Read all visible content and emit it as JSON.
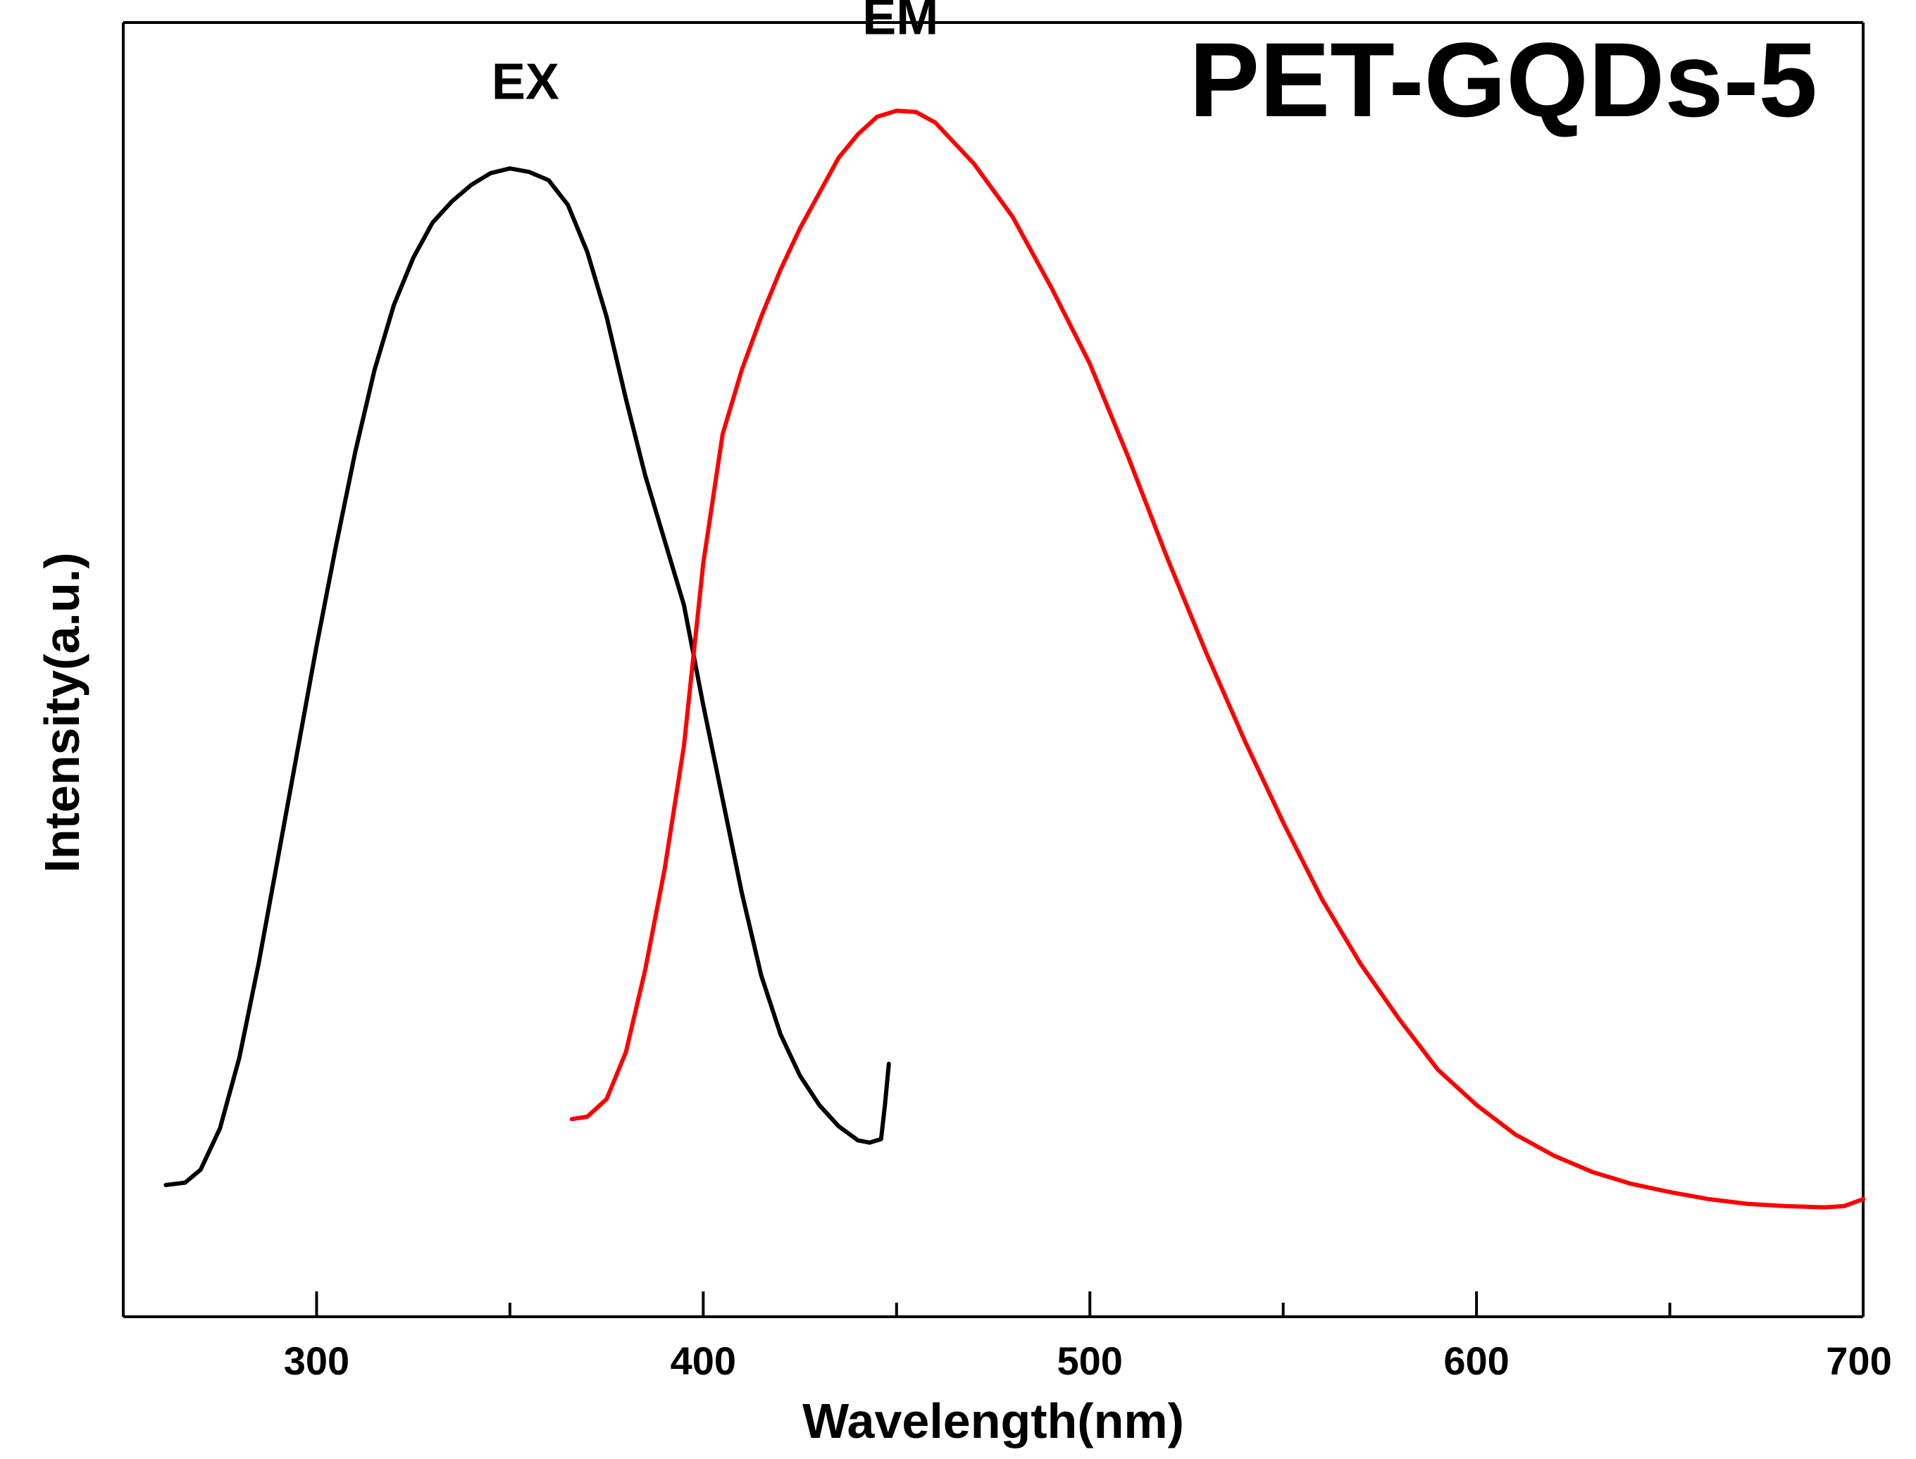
{
  "chart_data": {
    "type": "line",
    "title": "PET-GQDs-5",
    "xlabel": "Wavelength(nm)",
    "ylabel": "Intensity(a.u.)",
    "xlim": [
      250,
      700
    ],
    "ylim": [
      0,
      1.1
    ],
    "xticks": [
      300,
      400,
      500,
      600,
      700
    ],
    "minor_xticks": [
      350,
      450,
      550,
      650
    ],
    "grid": false,
    "series": [
      {
        "name": "EX",
        "color": "#000000",
        "label_at": [
          354,
          1.035
        ],
        "x": [
          261,
          266,
          270,
          275,
          280,
          285,
          290,
          295,
          300,
          305,
          310,
          315,
          320,
          325,
          330,
          335,
          340,
          345,
          350,
          355,
          360,
          365,
          370,
          375,
          380,
          385,
          390,
          395,
          400,
          405,
          410,
          415,
          420,
          425,
          430,
          435,
          440,
          443,
          446,
          447,
          448
        ],
        "y": [
          0.112,
          0.114,
          0.125,
          0.16,
          0.22,
          0.3,
          0.39,
          0.48,
          0.57,
          0.655,
          0.735,
          0.805,
          0.86,
          0.9,
          0.93,
          0.948,
          0.962,
          0.972,
          0.976,
          0.973,
          0.966,
          0.945,
          0.905,
          0.85,
          0.78,
          0.715,
          0.66,
          0.605,
          0.52,
          0.44,
          0.36,
          0.29,
          0.24,
          0.205,
          0.18,
          0.162,
          0.15,
          0.148,
          0.151,
          0.18,
          0.215
        ]
      },
      {
        "name": "EM",
        "color": "#ff0000",
        "label_at": [
          451,
          1.09
        ],
        "x": [
          366,
          370,
          375,
          380,
          385,
          390,
          395,
          400,
          405,
          410,
          415,
          420,
          425,
          430,
          435,
          440,
          445,
          450,
          455,
          460,
          470,
          480,
          490,
          500,
          510,
          520,
          530,
          540,
          550,
          560,
          570,
          580,
          590,
          600,
          610,
          620,
          630,
          640,
          650,
          660,
          670,
          680,
          690,
          695,
          700
        ],
        "y": [
          0.168,
          0.17,
          0.185,
          0.225,
          0.295,
          0.38,
          0.485,
          0.64,
          0.75,
          0.805,
          0.85,
          0.89,
          0.925,
          0.955,
          0.985,
          1.005,
          1.02,
          1.025,
          1.024,
          1.015,
          0.98,
          0.935,
          0.875,
          0.81,
          0.73,
          0.645,
          0.565,
          0.49,
          0.42,
          0.355,
          0.3,
          0.253,
          0.21,
          0.18,
          0.155,
          0.137,
          0.123,
          0.113,
          0.106,
          0.1,
          0.096,
          0.094,
          0.093,
          0.094,
          0.1
        ]
      }
    ]
  }
}
